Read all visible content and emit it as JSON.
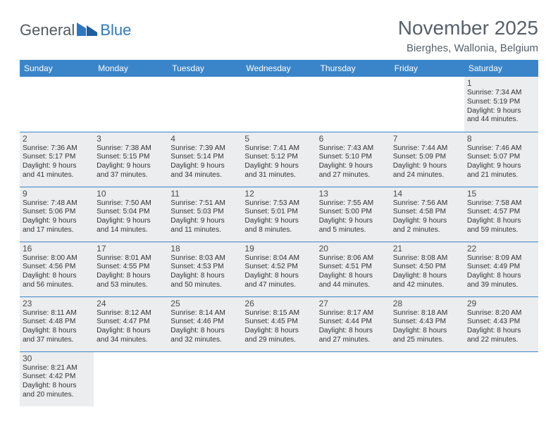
{
  "logo": {
    "text_gray": "General",
    "text_blue": "Blue"
  },
  "title": "November 2025",
  "location": "Bierghes, Wallonia, Belgium",
  "colors": {
    "header_bg": "#3a85c9",
    "header_text": "#ffffff",
    "cell_bg": "#ecedee",
    "border": "#3a85c9",
    "title_text": "#57606a",
    "logo_gray": "#555a5f",
    "logo_blue": "#2f78bf"
  },
  "weekdays": [
    "Sunday",
    "Monday",
    "Tuesday",
    "Wednesday",
    "Thursday",
    "Friday",
    "Saturday"
  ],
  "weeks": [
    [
      null,
      null,
      null,
      null,
      null,
      null,
      {
        "d": "1",
        "sr": "Sunrise: 7:34 AM",
        "ss": "Sunset: 5:19 PM",
        "dl1": "Daylight: 9 hours",
        "dl2": "and 44 minutes."
      }
    ],
    [
      {
        "d": "2",
        "sr": "Sunrise: 7:36 AM",
        "ss": "Sunset: 5:17 PM",
        "dl1": "Daylight: 9 hours",
        "dl2": "and 41 minutes."
      },
      {
        "d": "3",
        "sr": "Sunrise: 7:38 AM",
        "ss": "Sunset: 5:15 PM",
        "dl1": "Daylight: 9 hours",
        "dl2": "and 37 minutes."
      },
      {
        "d": "4",
        "sr": "Sunrise: 7:39 AM",
        "ss": "Sunset: 5:14 PM",
        "dl1": "Daylight: 9 hours",
        "dl2": "and 34 minutes."
      },
      {
        "d": "5",
        "sr": "Sunrise: 7:41 AM",
        "ss": "Sunset: 5:12 PM",
        "dl1": "Daylight: 9 hours",
        "dl2": "and 31 minutes."
      },
      {
        "d": "6",
        "sr": "Sunrise: 7:43 AM",
        "ss": "Sunset: 5:10 PM",
        "dl1": "Daylight: 9 hours",
        "dl2": "and 27 minutes."
      },
      {
        "d": "7",
        "sr": "Sunrise: 7:44 AM",
        "ss": "Sunset: 5:09 PM",
        "dl1": "Daylight: 9 hours",
        "dl2": "and 24 minutes."
      },
      {
        "d": "8",
        "sr": "Sunrise: 7:46 AM",
        "ss": "Sunset: 5:07 PM",
        "dl1": "Daylight: 9 hours",
        "dl2": "and 21 minutes."
      }
    ],
    [
      {
        "d": "9",
        "sr": "Sunrise: 7:48 AM",
        "ss": "Sunset: 5:06 PM",
        "dl1": "Daylight: 9 hours",
        "dl2": "and 17 minutes."
      },
      {
        "d": "10",
        "sr": "Sunrise: 7:50 AM",
        "ss": "Sunset: 5:04 PM",
        "dl1": "Daylight: 9 hours",
        "dl2": "and 14 minutes."
      },
      {
        "d": "11",
        "sr": "Sunrise: 7:51 AM",
        "ss": "Sunset: 5:03 PM",
        "dl1": "Daylight: 9 hours",
        "dl2": "and 11 minutes."
      },
      {
        "d": "12",
        "sr": "Sunrise: 7:53 AM",
        "ss": "Sunset: 5:01 PM",
        "dl1": "Daylight: 9 hours",
        "dl2": "and 8 minutes."
      },
      {
        "d": "13",
        "sr": "Sunrise: 7:55 AM",
        "ss": "Sunset: 5:00 PM",
        "dl1": "Daylight: 9 hours",
        "dl2": "and 5 minutes."
      },
      {
        "d": "14",
        "sr": "Sunrise: 7:56 AM",
        "ss": "Sunset: 4:58 PM",
        "dl1": "Daylight: 9 hours",
        "dl2": "and 2 minutes."
      },
      {
        "d": "15",
        "sr": "Sunrise: 7:58 AM",
        "ss": "Sunset: 4:57 PM",
        "dl1": "Daylight: 8 hours",
        "dl2": "and 59 minutes."
      }
    ],
    [
      {
        "d": "16",
        "sr": "Sunrise: 8:00 AM",
        "ss": "Sunset: 4:56 PM",
        "dl1": "Daylight: 8 hours",
        "dl2": "and 56 minutes."
      },
      {
        "d": "17",
        "sr": "Sunrise: 8:01 AM",
        "ss": "Sunset: 4:55 PM",
        "dl1": "Daylight: 8 hours",
        "dl2": "and 53 minutes."
      },
      {
        "d": "18",
        "sr": "Sunrise: 8:03 AM",
        "ss": "Sunset: 4:53 PM",
        "dl1": "Daylight: 8 hours",
        "dl2": "and 50 minutes."
      },
      {
        "d": "19",
        "sr": "Sunrise: 8:04 AM",
        "ss": "Sunset: 4:52 PM",
        "dl1": "Daylight: 8 hours",
        "dl2": "and 47 minutes."
      },
      {
        "d": "20",
        "sr": "Sunrise: 8:06 AM",
        "ss": "Sunset: 4:51 PM",
        "dl1": "Daylight: 8 hours",
        "dl2": "and 44 minutes."
      },
      {
        "d": "21",
        "sr": "Sunrise: 8:08 AM",
        "ss": "Sunset: 4:50 PM",
        "dl1": "Daylight: 8 hours",
        "dl2": "and 42 minutes."
      },
      {
        "d": "22",
        "sr": "Sunrise: 8:09 AM",
        "ss": "Sunset: 4:49 PM",
        "dl1": "Daylight: 8 hours",
        "dl2": "and 39 minutes."
      }
    ],
    [
      {
        "d": "23",
        "sr": "Sunrise: 8:11 AM",
        "ss": "Sunset: 4:48 PM",
        "dl1": "Daylight: 8 hours",
        "dl2": "and 37 minutes."
      },
      {
        "d": "24",
        "sr": "Sunrise: 8:12 AM",
        "ss": "Sunset: 4:47 PM",
        "dl1": "Daylight: 8 hours",
        "dl2": "and 34 minutes."
      },
      {
        "d": "25",
        "sr": "Sunrise: 8:14 AM",
        "ss": "Sunset: 4:46 PM",
        "dl1": "Daylight: 8 hours",
        "dl2": "and 32 minutes."
      },
      {
        "d": "26",
        "sr": "Sunrise: 8:15 AM",
        "ss": "Sunset: 4:45 PM",
        "dl1": "Daylight: 8 hours",
        "dl2": "and 29 minutes."
      },
      {
        "d": "27",
        "sr": "Sunrise: 8:17 AM",
        "ss": "Sunset: 4:44 PM",
        "dl1": "Daylight: 8 hours",
        "dl2": "and 27 minutes."
      },
      {
        "d": "28",
        "sr": "Sunrise: 8:18 AM",
        "ss": "Sunset: 4:43 PM",
        "dl1": "Daylight: 8 hours",
        "dl2": "and 25 minutes."
      },
      {
        "d": "29",
        "sr": "Sunrise: 8:20 AM",
        "ss": "Sunset: 4:43 PM",
        "dl1": "Daylight: 8 hours",
        "dl2": "and 22 minutes."
      }
    ],
    [
      {
        "d": "30",
        "sr": "Sunrise: 8:21 AM",
        "ss": "Sunset: 4:42 PM",
        "dl1": "Daylight: 8 hours",
        "dl2": "and 20 minutes."
      },
      null,
      null,
      null,
      null,
      null,
      null
    ]
  ]
}
